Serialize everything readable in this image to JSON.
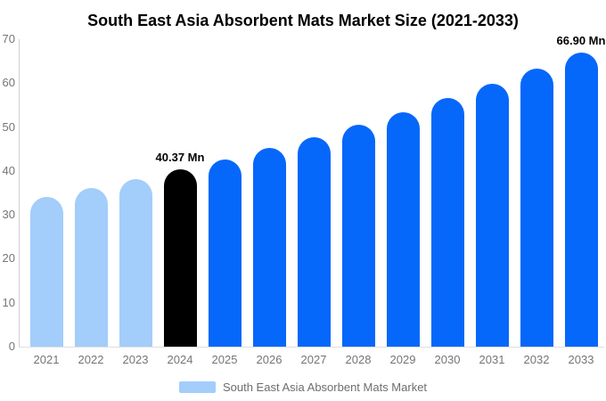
{
  "title": "South East Asia Absorbent Mats Market Size (2021-2033)",
  "chart_data": {
    "type": "bar",
    "title": "South East Asia Absorbent Mats Market Size (2021-2033)",
    "categories": [
      "2021",
      "2022",
      "2023",
      "2024",
      "2025",
      "2026",
      "2027",
      "2028",
      "2029",
      "2030",
      "2031",
      "2032",
      "2033"
    ],
    "series": [
      {
        "name": "South East Asia Absorbent Mats Market",
        "values": [
          34.12,
          36.09,
          38.17,
          40.37,
          42.7,
          45.16,
          47.77,
          50.52,
          53.43,
          56.52,
          59.78,
          63.23,
          66.9
        ]
      }
    ],
    "ylim": [
      0,
      70
    ],
    "yticks": [
      0,
      10,
      20,
      30,
      40,
      50,
      60,
      70
    ],
    "xlabel": "",
    "ylabel": "",
    "grid": false,
    "legend_position": "bottom",
    "data_labels": [
      {
        "category": "2024",
        "text": "40.37 Mn"
      },
      {
        "category": "2033",
        "text": "66.90 Mn"
      }
    ],
    "bar_colors": [
      "#a3cdfa",
      "#a3cdfa",
      "#a3cdfa",
      "#000000",
      "#0667fb",
      "#0667fb",
      "#0667fb",
      "#0667fb",
      "#0667fb",
      "#0667fb",
      "#0667fb",
      "#0667fb",
      "#0667fb"
    ]
  },
  "legend": {
    "label": "South East Asia Absorbent Mats Market",
    "swatch_color": "#a3cdfa"
  },
  "colors": {
    "historical_bar": "#a3cdfa",
    "base_year_bar": "#000000",
    "forecast_bar": "#0667fb",
    "axis_line": "#cfcfcf",
    "tick_text": "#757575",
    "title_text": "#000000",
    "background": "#ffffff"
  }
}
